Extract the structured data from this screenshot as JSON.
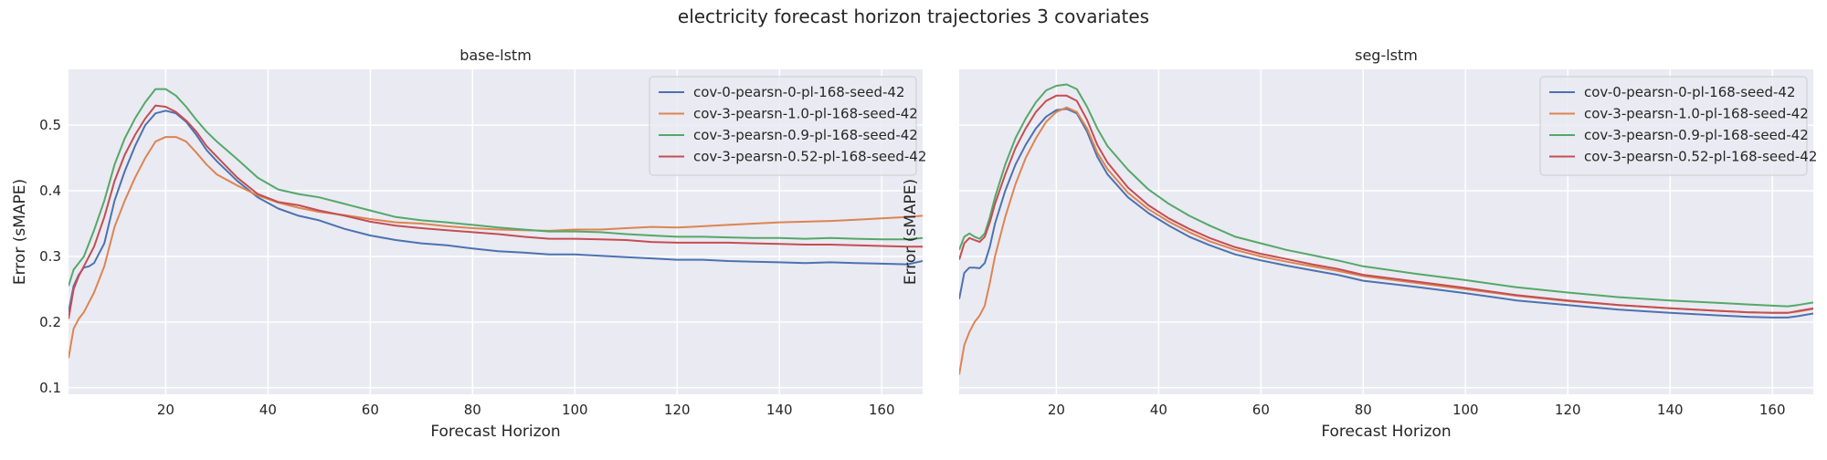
{
  "figure": {
    "suptitle": "electricity forecast horizon trajectories 3 covariates"
  },
  "chart_data": [
    {
      "type": "line",
      "title": "base-lstm",
      "xlabel": "Forecast Horizon",
      "ylabel": "Error (sMAPE)",
      "xlim": [
        1,
        168
      ],
      "ylim": [
        0.09,
        0.585
      ],
      "xticks": [
        20,
        40,
        60,
        80,
        100,
        120,
        140,
        160
      ],
      "yticks": [
        0.1,
        0.2,
        0.3,
        0.4,
        0.5
      ],
      "grid": true,
      "legend_position": "top-right",
      "colors": [
        "#4c72b0",
        "#dd8452",
        "#55a868",
        "#c44e52"
      ],
      "x": [
        1,
        2,
        3,
        4,
        5,
        6,
        8,
        10,
        12,
        14,
        16,
        18,
        20,
        22,
        24,
        26,
        28,
        30,
        34,
        38,
        42,
        46,
        50,
        55,
        60,
        65,
        70,
        75,
        80,
        85,
        90,
        95,
        100,
        105,
        110,
        115,
        120,
        125,
        130,
        135,
        140,
        145,
        150,
        155,
        160,
        165,
        168
      ],
      "series": [
        {
          "name": "cov-0-pearsn-0-pl-168-seed-42",
          "values": [
            0.215,
            0.255,
            0.272,
            0.283,
            0.285,
            0.29,
            0.32,
            0.385,
            0.43,
            0.468,
            0.5,
            0.518,
            0.522,
            0.518,
            0.505,
            0.485,
            0.462,
            0.445,
            0.415,
            0.39,
            0.373,
            0.362,
            0.355,
            0.342,
            0.332,
            0.325,
            0.32,
            0.317,
            0.312,
            0.308,
            0.306,
            0.303,
            0.303,
            0.301,
            0.299,
            0.297,
            0.295,
            0.295,
            0.293,
            0.292,
            0.291,
            0.29,
            0.291,
            0.29,
            0.289,
            0.288,
            0.293
          ]
        },
        {
          "name": "cov-3-pearsn-1.0-pl-168-seed-42",
          "values": [
            0.145,
            0.19,
            0.205,
            0.215,
            0.23,
            0.245,
            0.285,
            0.345,
            0.385,
            0.42,
            0.45,
            0.475,
            0.482,
            0.482,
            0.475,
            0.458,
            0.44,
            0.425,
            0.408,
            0.393,
            0.382,
            0.374,
            0.368,
            0.363,
            0.357,
            0.352,
            0.35,
            0.346,
            0.343,
            0.341,
            0.34,
            0.339,
            0.341,
            0.341,
            0.343,
            0.345,
            0.344,
            0.346,
            0.348,
            0.35,
            0.352,
            0.353,
            0.354,
            0.356,
            0.358,
            0.36,
            0.362
          ]
        },
        {
          "name": "cov-3-pearsn-0.9-pl-168-seed-42",
          "values": [
            0.255,
            0.28,
            0.29,
            0.3,
            0.32,
            0.34,
            0.385,
            0.44,
            0.48,
            0.51,
            0.535,
            0.555,
            0.555,
            0.545,
            0.528,
            0.508,
            0.49,
            0.475,
            0.448,
            0.42,
            0.402,
            0.395,
            0.39,
            0.38,
            0.37,
            0.36,
            0.355,
            0.352,
            0.348,
            0.344,
            0.341,
            0.338,
            0.338,
            0.337,
            0.334,
            0.332,
            0.33,
            0.33,
            0.329,
            0.328,
            0.328,
            0.327,
            0.328,
            0.327,
            0.326,
            0.326,
            0.328
          ]
        },
        {
          "name": "cov-3-pearsn-0.52-pl-168-seed-42",
          "values": [
            0.205,
            0.25,
            0.27,
            0.285,
            0.3,
            0.315,
            0.36,
            0.415,
            0.455,
            0.485,
            0.51,
            0.53,
            0.528,
            0.52,
            0.507,
            0.49,
            0.468,
            0.452,
            0.42,
            0.395,
            0.383,
            0.378,
            0.37,
            0.362,
            0.353,
            0.347,
            0.343,
            0.34,
            0.337,
            0.334,
            0.33,
            0.327,
            0.327,
            0.326,
            0.325,
            0.322,
            0.321,
            0.321,
            0.321,
            0.32,
            0.319,
            0.318,
            0.318,
            0.317,
            0.316,
            0.315,
            0.315
          ]
        }
      ]
    },
    {
      "type": "line",
      "title": "seg-lstm",
      "xlabel": "Forecast Horizon",
      "ylabel": "Error (sMAPE)",
      "xlim": [
        1,
        168
      ],
      "ylim": [
        0.09,
        0.585
      ],
      "xticks": [
        20,
        40,
        60,
        80,
        100,
        120,
        140,
        160
      ],
      "yticks": [
        0.1,
        0.2,
        0.3,
        0.4,
        0.5
      ],
      "grid": true,
      "legend_position": "top-right",
      "colors": [
        "#4c72b0",
        "#dd8452",
        "#55a868",
        "#c44e52"
      ],
      "x": [
        1,
        2,
        3,
        4,
        5,
        6,
        7,
        8,
        10,
        12,
        14,
        16,
        18,
        20,
        22,
        24,
        26,
        28,
        30,
        34,
        38,
        42,
        46,
        50,
        55,
        60,
        65,
        70,
        75,
        80,
        90,
        100,
        110,
        120,
        130,
        140,
        150,
        155,
        160,
        163,
        165,
        168
      ],
      "series": [
        {
          "name": "cov-0-pearsn-0-pl-168-seed-42",
          "values": [
            0.235,
            0.275,
            0.283,
            0.283,
            0.282,
            0.29,
            0.315,
            0.35,
            0.4,
            0.44,
            0.47,
            0.495,
            0.513,
            0.523,
            0.525,
            0.518,
            0.49,
            0.452,
            0.425,
            0.39,
            0.366,
            0.347,
            0.33,
            0.317,
            0.303,
            0.294,
            0.286,
            0.279,
            0.272,
            0.263,
            0.254,
            0.244,
            0.233,
            0.226,
            0.219,
            0.214,
            0.21,
            0.208,
            0.207,
            0.207,
            0.209,
            0.213
          ]
        },
        {
          "name": "cov-3-pearsn-1.0-pl-168-seed-42",
          "values": [
            0.12,
            0.165,
            0.185,
            0.2,
            0.21,
            0.225,
            0.26,
            0.3,
            0.36,
            0.41,
            0.45,
            0.48,
            0.505,
            0.52,
            0.527,
            0.52,
            0.495,
            0.458,
            0.433,
            0.397,
            0.372,
            0.353,
            0.337,
            0.323,
            0.31,
            0.3,
            0.292,
            0.285,
            0.278,
            0.27,
            0.26,
            0.25,
            0.24,
            0.232,
            0.226,
            0.221,
            0.217,
            0.215,
            0.214,
            0.214,
            0.216,
            0.22
          ]
        },
        {
          "name": "cov-3-pearsn-0.9-pl-168-seed-42",
          "values": [
            0.31,
            0.33,
            0.335,
            0.33,
            0.327,
            0.335,
            0.36,
            0.39,
            0.44,
            0.48,
            0.51,
            0.535,
            0.553,
            0.56,
            0.562,
            0.555,
            0.528,
            0.495,
            0.468,
            0.432,
            0.402,
            0.38,
            0.362,
            0.347,
            0.33,
            0.32,
            0.31,
            0.302,
            0.294,
            0.285,
            0.274,
            0.264,
            0.253,
            0.245,
            0.238,
            0.233,
            0.229,
            0.227,
            0.225,
            0.224,
            0.226,
            0.23
          ]
        },
        {
          "name": "cov-3-pearsn-0.52-pl-168-seed-42",
          "values": [
            0.295,
            0.32,
            0.328,
            0.325,
            0.322,
            0.33,
            0.352,
            0.38,
            0.425,
            0.465,
            0.495,
            0.52,
            0.537,
            0.545,
            0.545,
            0.537,
            0.508,
            0.47,
            0.443,
            0.405,
            0.378,
            0.358,
            0.342,
            0.328,
            0.314,
            0.304,
            0.296,
            0.288,
            0.281,
            0.272,
            0.262,
            0.252,
            0.241,
            0.233,
            0.226,
            0.221,
            0.217,
            0.215,
            0.214,
            0.214,
            0.217,
            0.221
          ]
        }
      ]
    }
  ]
}
